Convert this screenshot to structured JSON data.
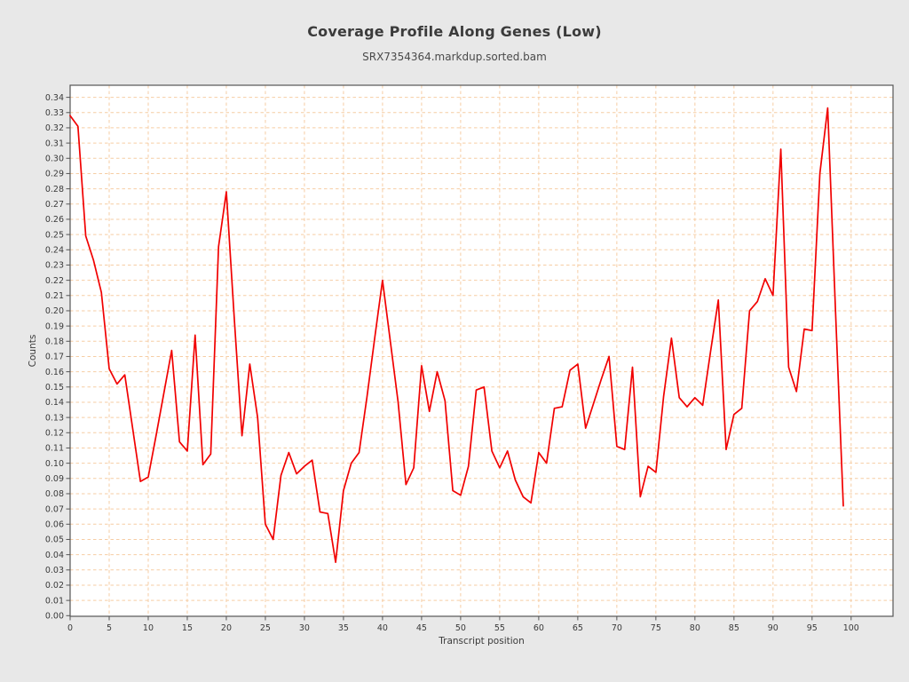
{
  "header": {
    "title": "Coverage Profile Along Genes (Low)",
    "subtitle": "SRX7354364.markdup.sorted.bam"
  },
  "chart_data": {
    "type": "line",
    "title": "Coverage Profile Along Genes (Low)",
    "subtitle": "SRX7354364.markdup.sorted.bam",
    "xlabel": "Transcript position",
    "ylabel": "Counts",
    "x_start": 0,
    "x_step": 1,
    "values": [
      0.328,
      0.321,
      0.249,
      0.233,
      0.212,
      0.162,
      0.152,
      0.158,
      0.123,
      0.088,
      0.091,
      0.118,
      0.146,
      0.174,
      0.114,
      0.108,
      0.184,
      0.099,
      0.106,
      0.242,
      0.278,
      0.196,
      0.118,
      0.165,
      0.13,
      0.06,
      0.05,
      0.092,
      0.107,
      0.093,
      0.098,
      0.102,
      0.068,
      0.067,
      0.035,
      0.082,
      0.1,
      0.107,
      0.143,
      0.182,
      0.22,
      0.18,
      0.14,
      0.086,
      0.097,
      0.164,
      0.134,
      0.16,
      0.141,
      0.082,
      0.079,
      0.098,
      0.148,
      0.15,
      0.108,
      0.097,
      0.108,
      0.089,
      0.078,
      0.074,
      0.107,
      0.1,
      0.136,
      0.137,
      0.161,
      0.165,
      0.123,
      0.139,
      0.155,
      0.17,
      0.111,
      0.109,
      0.163,
      0.078,
      0.098,
      0.094,
      0.144,
      0.182,
      0.143,
      0.137,
      0.143,
      0.138,
      0.173,
      0.207,
      0.109,
      0.132,
      0.136,
      0.2,
      0.206,
      0.221,
      0.21,
      0.306,
      0.163,
      0.147,
      0.188,
      0.187,
      0.29,
      0.333,
      0.2,
      0.072
    ],
    "xlim": [
      0,
      105.4
    ],
    "ylim": [
      0,
      0.3479
    ],
    "x_ticks": [
      0,
      5,
      10,
      15,
      20,
      25,
      30,
      35,
      40,
      45,
      50,
      55,
      60,
      65,
      70,
      75,
      80,
      85,
      90,
      95,
      100
    ],
    "y_tick_labels": [
      "0.00",
      "0.01",
      "0.02",
      "0.03",
      "0.04",
      "0.05",
      "0.06",
      "0.07",
      "0.08",
      "0.09",
      "0.10",
      "0.11",
      "0.12",
      "0.13",
      "0.14",
      "0.15",
      "0.16",
      "0.17",
      "0.18",
      "0.19",
      "0.20",
      "0.21",
      "0.22",
      "0.23",
      "0.24",
      "0.25",
      "0.26",
      "0.27",
      "0.28",
      "0.29",
      "0.30",
      "0.31",
      "0.32",
      "0.33",
      "0.34"
    ],
    "grid": "dashed",
    "legend_position": "none",
    "colors": {
      "line": "#f10000",
      "grid": "#f6cda4",
      "plot_background": "#ffffff",
      "page_background": "#e8e8e8",
      "frame": "#555555",
      "text": "#3a3a3a"
    }
  }
}
